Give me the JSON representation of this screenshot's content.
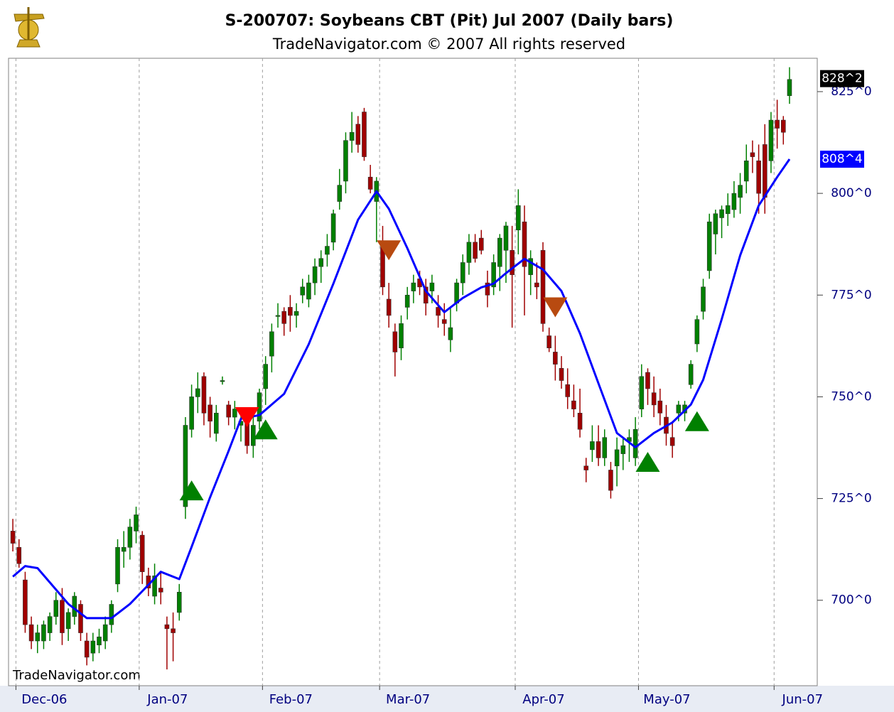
{
  "chart_data": {
    "type": "candlestick",
    "title": "S-200707:  Soybeans CBT (Pit) Jul 2007  (Daily bars)",
    "subtitle": "TradeNavigator.com © 2007 All rights reserved",
    "watermark": "TradeNavigator.com",
    "up_color": "#008000",
    "down_color": "#a00000",
    "ma_color": "#0000ff",
    "xlim": [
      -0.7,
      130.5
    ],
    "xticks": [
      {
        "value": 0.5,
        "label": "Dec-06"
      },
      {
        "value": 20.5,
        "label": "Jan-07"
      },
      {
        "value": 40.5,
        "label": "Feb-07"
      },
      {
        "value": 59.5,
        "label": "Mar-07"
      },
      {
        "value": 81.5,
        "label": "Apr-07"
      },
      {
        "value": 101.5,
        "label": "May-07"
      },
      {
        "value": 123.5,
        "label": "Jun-07"
      }
    ],
    "ylim": [
      679,
      833.2
    ],
    "yticks": [
      {
        "value": 700,
        "label": "700^0"
      },
      {
        "value": 725,
        "label": "725^0"
      },
      {
        "value": 750,
        "label": "750^0"
      },
      {
        "value": 775,
        "label": "775^0"
      },
      {
        "value": 800,
        "label": "800^0"
      },
      {
        "value": 825,
        "label": "825^0"
      }
    ],
    "grid": true,
    "candles": [
      [
        717,
        720,
        712,
        714
      ],
      [
        713,
        715,
        708,
        709
      ],
      [
        705,
        707,
        692,
        694
      ],
      [
        694,
        696,
        688,
        690
      ],
      [
        690,
        694,
        687,
        692
      ],
      [
        690,
        695,
        688,
        694
      ],
      [
        692,
        697,
        690,
        696
      ],
      [
        696,
        702,
        694,
        700
      ],
      [
        700,
        703,
        689,
        692
      ],
      [
        693,
        698,
        690,
        697
      ],
      [
        696,
        702,
        694,
        701
      ],
      [
        699,
        700,
        690,
        692
      ],
      [
        690,
        692,
        684,
        686
      ],
      [
        687,
        692,
        685,
        690
      ],
      [
        689,
        693,
        687,
        691
      ],
      [
        690,
        696,
        688,
        694
      ],
      [
        694,
        700,
        692,
        699
      ],
      [
        704,
        715,
        702,
        713
      ],
      [
        712,
        717,
        708,
        713
      ],
      [
        713,
        720,
        710,
        718
      ],
      [
        717,
        723,
        714,
        721
      ],
      [
        716,
        717,
        704,
        707
      ],
      [
        706,
        708,
        701,
        703
      ],
      [
        701,
        709,
        699,
        706
      ],
      [
        703,
        707,
        699,
        702
      ],
      [
        694,
        696,
        683,
        693
      ],
      [
        693,
        697,
        685,
        692
      ],
      [
        697,
        704,
        695,
        702
      ],
      [
        723,
        745,
        720,
        743
      ],
      [
        742,
        753,
        740,
        750
      ],
      [
        750,
        756,
        746,
        752
      ],
      [
        755,
        756,
        743,
        746
      ],
      [
        748,
        750,
        740,
        744
      ],
      [
        741,
        748,
        739,
        746
      ],
      [
        754,
        755,
        753,
        754
      ],
      [
        748,
        749,
        743,
        745
      ],
      [
        745,
        749,
        742,
        747
      ],
      [
        743,
        746,
        739,
        744
      ],
      [
        745,
        747,
        736,
        738
      ],
      [
        738,
        745,
        735,
        743
      ],
      [
        744,
        752,
        742,
        751
      ],
      [
        752,
        760,
        748,
        758
      ],
      [
        760,
        768,
        756,
        766
      ],
      [
        770,
        773,
        767,
        770
      ],
      [
        771,
        772,
        765,
        768
      ],
      [
        772,
        775,
        766,
        770
      ],
      [
        770,
        773,
        767,
        771
      ],
      [
        775,
        779,
        773,
        777
      ],
      [
        774,
        780,
        772,
        778
      ],
      [
        778,
        784,
        775,
        782
      ],
      [
        782,
        786,
        778,
        784
      ],
      [
        785,
        790,
        782,
        787
      ],
      [
        788,
        796,
        786,
        795
      ],
      [
        798,
        806,
        796,
        802
      ],
      [
        803,
        815,
        800,
        813
      ],
      [
        813,
        820,
        810,
        815
      ],
      [
        817,
        819,
        810,
        812
      ],
      [
        820,
        821,
        808,
        809
      ],
      [
        804,
        807,
        800,
        801
      ],
      [
        798,
        804,
        788,
        803
      ],
      [
        787,
        792,
        775,
        777
      ],
      [
        774,
        778,
        767,
        770
      ],
      [
        766,
        768,
        755,
        761
      ],
      [
        762,
        770,
        759,
        768
      ],
      [
        772,
        777,
        769,
        775
      ],
      [
        776,
        780,
        773,
        778
      ],
      [
        779,
        781,
        775,
        777
      ],
      [
        777,
        779,
        770,
        773
      ],
      [
        776,
        780,
        773,
        778
      ],
      [
        772,
        775,
        767,
        770
      ],
      [
        769,
        773,
        765,
        768
      ],
      [
        764,
        772,
        761,
        767
      ],
      [
        773,
        779,
        771,
        778
      ],
      [
        778,
        785,
        775,
        783
      ],
      [
        783,
        790,
        780,
        788
      ],
      [
        788,
        790,
        783,
        784
      ],
      [
        789,
        791,
        785,
        786
      ],
      [
        778,
        781,
        772,
        775
      ],
      [
        777,
        785,
        775,
        783
      ],
      [
        782,
        790,
        776,
        789
      ],
      [
        786,
        793,
        778,
        792
      ],
      [
        786,
        792,
        767,
        780
      ],
      [
        791,
        801,
        785,
        797
      ],
      [
        793,
        797,
        770,
        782
      ],
      [
        780,
        786,
        775,
        784
      ],
      [
        778,
        783,
        774,
        777
      ],
      [
        786,
        788,
        766,
        768
      ],
      [
        765,
        767,
        761,
        762
      ],
      [
        761,
        765,
        754,
        758
      ],
      [
        757,
        760,
        752,
        754
      ],
      [
        753,
        757,
        747,
        750
      ],
      [
        749,
        753,
        745,
        747
      ],
      [
        746,
        752,
        740,
        742
      ],
      [
        733,
        735,
        729,
        732
      ],
      [
        737,
        743,
        734,
        739
      ],
      [
        739,
        743,
        733,
        735
      ],
      [
        735,
        742,
        733,
        740
      ],
      [
        732,
        734,
        725,
        727
      ],
      [
        733,
        740,
        728,
        737
      ],
      [
        736,
        740,
        732,
        738
      ],
      [
        739,
        742,
        734,
        740
      ],
      [
        735,
        745,
        733,
        742
      ],
      [
        747,
        758,
        745,
        755
      ],
      [
        756,
        757,
        748,
        752
      ],
      [
        751,
        755,
        745,
        748
      ],
      [
        749,
        752,
        743,
        746
      ],
      [
        745,
        748,
        738,
        741
      ],
      [
        740,
        744,
        735,
        738
      ],
      [
        746,
        749,
        744,
        748
      ],
      [
        746,
        749,
        744,
        748
      ],
      [
        753,
        759,
        752,
        758
      ],
      [
        763,
        770,
        761,
        769
      ],
      [
        771,
        779,
        769,
        777
      ],
      [
        781,
        795,
        779,
        793
      ],
      [
        790,
        796,
        785,
        795
      ],
      [
        794,
        797,
        789,
        796
      ],
      [
        795,
        800,
        792,
        797
      ],
      [
        796,
        803,
        794,
        800
      ],
      [
        799,
        805,
        795,
        802
      ],
      [
        803,
        812,
        800,
        808
      ],
      [
        810,
        813,
        805,
        809
      ],
      [
        808,
        812,
        795,
        800
      ],
      [
        812,
        817,
        795,
        799
      ],
      [
        808,
        820,
        805,
        818
      ],
      [
        818,
        823,
        811,
        816
      ],
      [
        818,
        819,
        812,
        815
      ],
      [
        824,
        831,
        822,
        828
      ]
    ],
    "ma": {
      "x": [
        0,
        2,
        4,
        6,
        9,
        12,
        16,
        19,
        22,
        24,
        27,
        29,
        32,
        35,
        37,
        40,
        44,
        48,
        52,
        56,
        59,
        61,
        64,
        67,
        70,
        73,
        76,
        78,
        80,
        83,
        86,
        89,
        92,
        95,
        98,
        101,
        104,
        107,
        110,
        112,
        115,
        118,
        121,
        124,
        126
      ],
      "values": [
        705.8,
        708.4,
        707.9,
        704.4,
        699.1,
        695.6,
        695.6,
        699.1,
        703.8,
        707.0,
        705.2,
        713.1,
        725.3,
        736.7,
        744.6,
        745.5,
        750.7,
        762.9,
        777.8,
        793.5,
        800.5,
        796.2,
        786.5,
        776.0,
        770.8,
        774.3,
        776.9,
        777.8,
        780.4,
        783.9,
        781.3,
        776.0,
        765.6,
        753.3,
        741.1,
        737.6,
        741.1,
        743.7,
        748.1,
        754.2,
        769.1,
        784.8,
        797.0,
        804.0,
        808.4
      ]
    },
    "signals": [
      {
        "x": 29,
        "value": 727,
        "direction": "up",
        "color": "#008000"
      },
      {
        "x": 38,
        "value": 745,
        "direction": "down",
        "color": "#ff0000"
      },
      {
        "x": 41,
        "value": 742,
        "direction": "up",
        "color": "#008000"
      },
      {
        "x": 61,
        "value": 786,
        "direction": "down",
        "color": "#b84a10"
      },
      {
        "x": 88,
        "value": 772,
        "direction": "down",
        "color": "#b84a10"
      },
      {
        "x": 103,
        "value": 734,
        "direction": "up",
        "color": "#008000"
      },
      {
        "x": 111,
        "value": 744,
        "direction": "up",
        "color": "#008000"
      }
    ],
    "last_price": {
      "value": 828.2,
      "label": "828^2"
    },
    "ma_last": {
      "value": 808.4,
      "label": "808^4"
    }
  }
}
